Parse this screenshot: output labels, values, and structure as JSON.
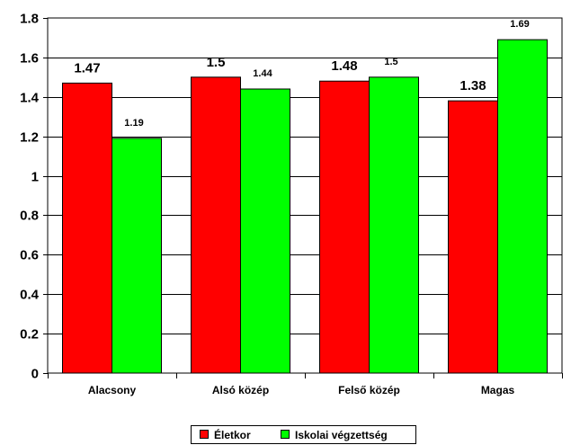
{
  "chart_data": {
    "type": "bar",
    "categories": [
      "Alacsony",
      "Alsó közép",
      "Felső közép",
      "Magas"
    ],
    "series": [
      {
        "name": "Életkor",
        "color": "#ff0000",
        "values": [
          1.47,
          1.5,
          1.48,
          1.38
        ],
        "labels": [
          "1.47",
          "1.5",
          "1.48",
          "1.38"
        ]
      },
      {
        "name": "Iskolai végzettség",
        "color": "#00ff00",
        "values": [
          1.19,
          1.44,
          1.5,
          1.69
        ],
        "labels": [
          "1.19",
          "1.44",
          "1.5",
          "1.69"
        ]
      }
    ],
    "ylim": [
      0,
      1.8
    ],
    "yticks": [
      0,
      0.2,
      0.4,
      0.6,
      0.8,
      1,
      1.2,
      1.4,
      1.6,
      1.8
    ],
    "ytick_labels": [
      "0",
      "0.2",
      "0.4",
      "0.6",
      "0.8",
      "1",
      "1.2",
      "1.4",
      "1.6",
      "1.8"
    ],
    "grid": true,
    "legend_position": "bottom"
  }
}
